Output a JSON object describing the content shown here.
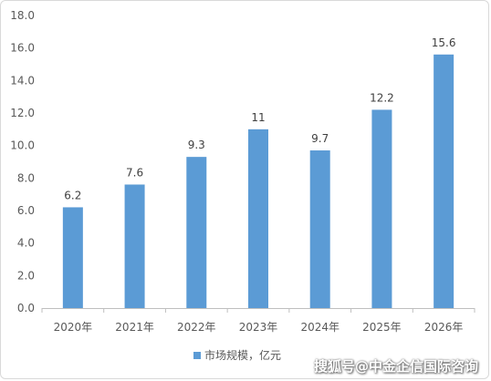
{
  "chart_data": {
    "type": "bar",
    "categories": [
      "2020年",
      "2021年",
      "2022年",
      "2023年",
      "2024年",
      "2025年",
      "2026年"
    ],
    "series": [
      {
        "name": "市场规模，亿元",
        "values": [
          6.2,
          7.6,
          9.3,
          11,
          9.7,
          12.2,
          15.6
        ],
        "labels": [
          "6.2",
          "7.6",
          "9.3",
          "11",
          "9.7",
          "12.2",
          "15.6"
        ],
        "color": "#5b9bd5"
      }
    ],
    "ylim": [
      0,
      18
    ],
    "yticks": [
      "0.0",
      "2.0",
      "4.0",
      "6.0",
      "8.0",
      "10.0",
      "12.0",
      "14.0",
      "16.0",
      "18.0"
    ],
    "ytick_values": [
      0,
      2,
      4,
      6,
      8,
      10,
      12,
      14,
      16,
      18
    ],
    "grid": false,
    "legend": "bottom"
  },
  "watermark": "搜狐号@中金企信国际咨询"
}
